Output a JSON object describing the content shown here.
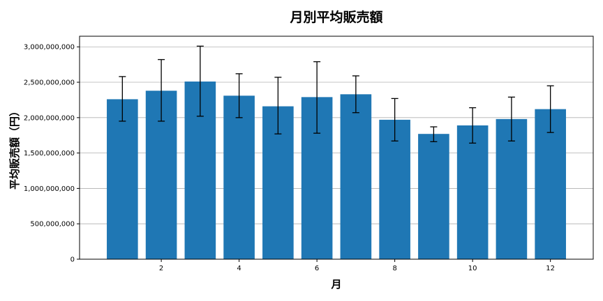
{
  "chart_data": {
    "type": "bar",
    "title": "月別平均販売額",
    "xlabel": "月",
    "ylabel": "平均販売額（円）",
    "x": [
      1,
      2,
      3,
      4,
      5,
      6,
      7,
      8,
      9,
      10,
      11,
      12
    ],
    "values": [
      2260000000,
      2380000000,
      2510000000,
      2310000000,
      2160000000,
      2290000000,
      2330000000,
      1970000000,
      1770000000,
      1890000000,
      1980000000,
      2120000000
    ],
    "error_lower": [
      1950000000,
      1950000000,
      2020000000,
      2000000000,
      1770000000,
      1780000000,
      2070000000,
      1670000000,
      1660000000,
      1640000000,
      1670000000,
      1790000000
    ],
    "error_upper": [
      2580000000,
      2820000000,
      3010000000,
      2620000000,
      2570000000,
      2790000000,
      2590000000,
      2270000000,
      1870000000,
      2140000000,
      2290000000,
      2450000000
    ],
    "xticks": [
      2,
      4,
      6,
      8,
      10,
      12
    ],
    "yticks": [
      0,
      500000000,
      1000000000,
      1500000000,
      2000000000,
      2500000000,
      3000000000
    ],
    "ytick_labels": [
      "0",
      "500,000,000",
      "1,000,000,000",
      "1,500,000,000",
      "2,000,000,000",
      "2,500,000,000",
      "3,000,000,000"
    ],
    "xlim": [
      -0.1,
      13.1
    ],
    "ylim": [
      0,
      3150000000
    ],
    "grid": "y",
    "bar_color": "#1f77b4",
    "error_color": "#000000"
  }
}
